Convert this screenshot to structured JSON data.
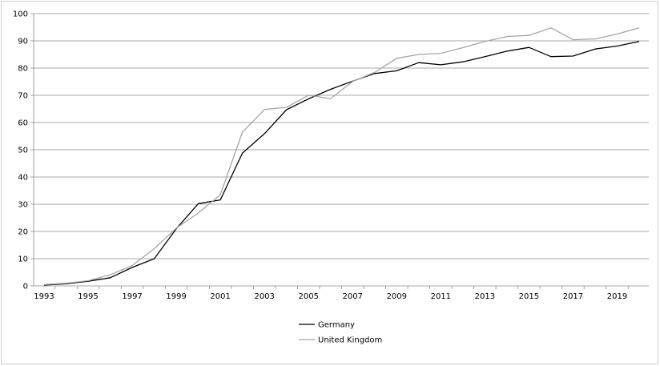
{
  "chart_data": {
    "type": "line",
    "title": "",
    "xlabel": "",
    "ylabel": "",
    "x": [
      1993,
      1994,
      1995,
      1996,
      1997,
      1998,
      1999,
      2000,
      2001,
      2002,
      2003,
      2004,
      2005,
      2006,
      2007,
      2008,
      2009,
      2010,
      2011,
      2012,
      2013,
      2014,
      2015,
      2016,
      2017,
      2018,
      2019,
      2020
    ],
    "x_tick_labels": [
      "1993",
      "1995",
      "1997",
      "1999",
      "2001",
      "2003",
      "2005",
      "2007",
      "2009",
      "2011",
      "2013",
      "2015",
      "2017",
      "2019"
    ],
    "y_tick_labels": [
      "0",
      "10",
      "20",
      "30",
      "40",
      "50",
      "60",
      "70",
      "80",
      "90",
      "100"
    ],
    "ylim": [
      0,
      100
    ],
    "xlim": [
      1993,
      2020
    ],
    "grid": "horizontal",
    "legend_position": "bottom-center",
    "series": [
      {
        "name": "Germany",
        "color": "#000000",
        "values": [
          0.3,
          0.8,
          1.7,
          3.0,
          6.8,
          10.0,
          21.0,
          30.2,
          31.6,
          48.8,
          55.9,
          64.7,
          68.7,
          72.2,
          75.2,
          78.0,
          79.0,
          82.0,
          81.2,
          82.3,
          84.2,
          86.2,
          87.6,
          84.2,
          84.4,
          87.0,
          88.1,
          89.8
        ]
      },
      {
        "name": "United Kingdom",
        "color": "#a6a6a6",
        "values": [
          0.5,
          1.0,
          1.9,
          4.1,
          7.5,
          13.7,
          21.2,
          26.8,
          33.5,
          56.5,
          64.8,
          65.6,
          70.0,
          68.8,
          75.1,
          78.4,
          83.6,
          85.0,
          85.4,
          87.5,
          89.8,
          91.6,
          92.0,
          94.8,
          90.4,
          90.7,
          92.5,
          94.8
        ]
      }
    ]
  }
}
